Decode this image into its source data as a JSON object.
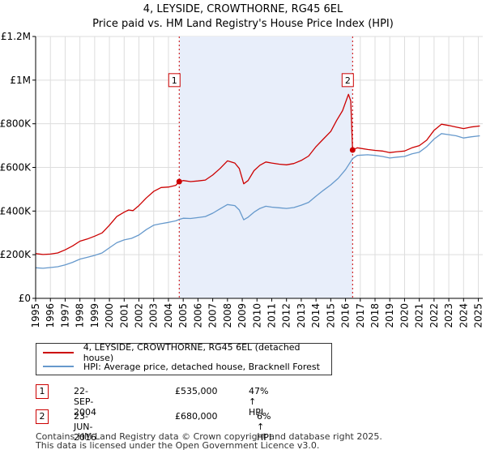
{
  "chart_data": {
    "type": "line",
    "title": "4, LEYSIDE, CROWTHORNE, RG45 6EL",
    "subtitle": "Price paid vs. HM Land Registry's House Price Index (HPI)",
    "xlim": [
      1995,
      2025.3
    ],
    "ylim": [
      0,
      1200000
    ],
    "x_ticks": [
      1995,
      1996,
      1997,
      1998,
      1999,
      2000,
      2001,
      2002,
      2003,
      2004,
      2005,
      2006,
      2007,
      2008,
      2009,
      2010,
      2011,
      2012,
      2013,
      2014,
      2015,
      2016,
      2017,
      2018,
      2019,
      2020,
      2021,
      2022,
      2023,
      2024,
      2025
    ],
    "y_ticks": [
      {
        "value": 0,
        "label": "£0"
      },
      {
        "value": 200000,
        "label": "£200K"
      },
      {
        "value": 400000,
        "label": "£400K"
      },
      {
        "value": 600000,
        "label": "£600K"
      },
      {
        "value": 800000,
        "label": "£800K"
      },
      {
        "value": 1000000,
        "label": "£1M"
      },
      {
        "value": 1200000,
        "label": "£1.2M"
      }
    ],
    "grid": true,
    "shaded_period": [
      2004.73,
      2016.48
    ],
    "series": [
      {
        "name": "4, LEYSIDE, CROWTHORNE, RG45 6EL (detached house)",
        "color": "#cc0000",
        "points": [
          [
            1995,
            205000
          ],
          [
            1995.5,
            201000
          ],
          [
            1996,
            203000
          ],
          [
            1996.5,
            208000
          ],
          [
            1997,
            222000
          ],
          [
            1997.5,
            240000
          ],
          [
            1998,
            262000
          ],
          [
            1998.5,
            272000
          ],
          [
            1999,
            285000
          ],
          [
            1999.5,
            300000
          ],
          [
            2000,
            335000
          ],
          [
            2000.5,
            375000
          ],
          [
            2001,
            395000
          ],
          [
            2001.3,
            405000
          ],
          [
            2001.6,
            402000
          ],
          [
            2002,
            425000
          ],
          [
            2002.5,
            460000
          ],
          [
            2003,
            490000
          ],
          [
            2003.5,
            508000
          ],
          [
            2004,
            510000
          ],
          [
            2004.5,
            518000
          ],
          [
            2004.73,
            535000
          ],
          [
            2005,
            540000
          ],
          [
            2005.5,
            535000
          ],
          [
            2006,
            538000
          ],
          [
            2006.5,
            542000
          ],
          [
            2007,
            565000
          ],
          [
            2007.5,
            595000
          ],
          [
            2008,
            630000
          ],
          [
            2008.5,
            620000
          ],
          [
            2008.8,
            595000
          ],
          [
            2009.1,
            525000
          ],
          [
            2009.4,
            540000
          ],
          [
            2009.8,
            585000
          ],
          [
            2010.2,
            610000
          ],
          [
            2010.6,
            625000
          ],
          [
            2011,
            620000
          ],
          [
            2011.5,
            615000
          ],
          [
            2012,
            612000
          ],
          [
            2012.5,
            618000
          ],
          [
            2013,
            632000
          ],
          [
            2013.5,
            652000
          ],
          [
            2014,
            695000
          ],
          [
            2014.5,
            730000
          ],
          [
            2015,
            765000
          ],
          [
            2015.4,
            815000
          ],
          [
            2015.8,
            860000
          ],
          [
            2016.2,
            935000
          ],
          [
            2016.35,
            905000
          ],
          [
            2016.48,
            680000
          ],
          [
            2016.8,
            690000
          ],
          [
            2017.5,
            682000
          ],
          [
            2018,
            678000
          ],
          [
            2018.5,
            675000
          ],
          [
            2019,
            668000
          ],
          [
            2019.5,
            672000
          ],
          [
            2020,
            675000
          ],
          [
            2020.5,
            690000
          ],
          [
            2021,
            700000
          ],
          [
            2021.5,
            725000
          ],
          [
            2022,
            770000
          ],
          [
            2022.5,
            798000
          ],
          [
            2023,
            792000
          ],
          [
            2023.5,
            785000
          ],
          [
            2024,
            778000
          ],
          [
            2024.5,
            785000
          ],
          [
            2025.1,
            790000
          ]
        ]
      },
      {
        "name": "HPI: Average price, detached house, Bracknell Forest",
        "color": "#6699cc",
        "points": [
          [
            1995,
            140000
          ],
          [
            1995.5,
            138000
          ],
          [
            1996,
            141000
          ],
          [
            1996.5,
            145000
          ],
          [
            1997,
            153000
          ],
          [
            1997.5,
            165000
          ],
          [
            1998,
            180000
          ],
          [
            1998.5,
            188000
          ],
          [
            1999,
            197000
          ],
          [
            1999.5,
            208000
          ],
          [
            2000,
            232000
          ],
          [
            2000.5,
            255000
          ],
          [
            2001,
            268000
          ],
          [
            2001.5,
            275000
          ],
          [
            2002,
            290000
          ],
          [
            2002.5,
            315000
          ],
          [
            2003,
            335000
          ],
          [
            2003.5,
            342000
          ],
          [
            2004,
            348000
          ],
          [
            2004.5,
            355000
          ],
          [
            2004.73,
            362000
          ],
          [
            2005,
            367000
          ],
          [
            2005.5,
            366000
          ],
          [
            2006,
            370000
          ],
          [
            2006.5,
            375000
          ],
          [
            2007,
            390000
          ],
          [
            2007.5,
            410000
          ],
          [
            2008,
            430000
          ],
          [
            2008.5,
            425000
          ],
          [
            2008.8,
            405000
          ],
          [
            2009.1,
            360000
          ],
          [
            2009.4,
            372000
          ],
          [
            2009.8,
            395000
          ],
          [
            2010.2,
            412000
          ],
          [
            2010.6,
            422000
          ],
          [
            2011,
            418000
          ],
          [
            2011.5,
            415000
          ],
          [
            2012,
            412000
          ],
          [
            2012.5,
            416000
          ],
          [
            2013,
            427000
          ],
          [
            2013.5,
            440000
          ],
          [
            2014,
            468000
          ],
          [
            2014.5,
            495000
          ],
          [
            2015,
            520000
          ],
          [
            2015.5,
            550000
          ],
          [
            2016,
            590000
          ],
          [
            2016.48,
            640000
          ],
          [
            2016.8,
            655000
          ],
          [
            2017.5,
            658000
          ],
          [
            2018,
            655000
          ],
          [
            2018.5,
            650000
          ],
          [
            2019,
            643000
          ],
          [
            2019.5,
            647000
          ],
          [
            2020,
            650000
          ],
          [
            2020.5,
            662000
          ],
          [
            2021,
            670000
          ],
          [
            2021.5,
            695000
          ],
          [
            2022,
            730000
          ],
          [
            2022.5,
            755000
          ],
          [
            2023,
            750000
          ],
          [
            2023.5,
            745000
          ],
          [
            2024,
            735000
          ],
          [
            2024.5,
            740000
          ],
          [
            2025.1,
            745000
          ]
        ]
      }
    ],
    "markers": [
      {
        "label": "1",
        "x": 2004.73,
        "y": 535000,
        "box_y": 1000000
      },
      {
        "label": "2",
        "x": 2016.48,
        "y": 680000,
        "box_y": 1000000
      }
    ]
  },
  "legend": {
    "items": [
      {
        "label": "4, LEYSIDE, CROWTHORNE, RG45 6EL (detached house)",
        "color": "#cc0000"
      },
      {
        "label": "HPI: Average price, detached house, Bracknell Forest",
        "color": "#6699cc"
      }
    ]
  },
  "sales": [
    {
      "num": "1",
      "date": "22-SEP-2004",
      "price": "£535,000",
      "hpi": "47% ↑ HPI"
    },
    {
      "num": "2",
      "date": "23-JUN-2016",
      "price": "£680,000",
      "hpi": "6% ↑ HPI"
    }
  ],
  "footer": {
    "line1": "Contains HM Land Registry data © Crown copyright and database right 2025.",
    "line2": "This data is licensed under the Open Government Licence v3.0."
  }
}
